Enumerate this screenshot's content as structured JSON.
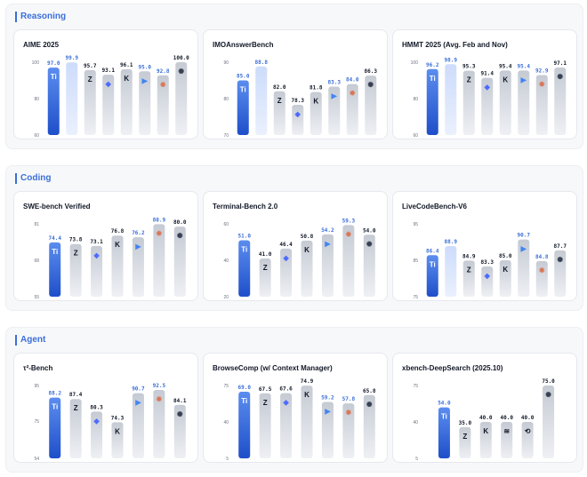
{
  "sections": [
    {
      "title": "Reasoning",
      "charts": [
        {
          "title": "AIME 2025",
          "ymin": 60,
          "ymax": 100,
          "ticks": [
            60,
            80,
            100
          ],
          "bars": [
            {
              "model": "ours",
              "value": 97.0,
              "label": "97.0",
              "highlight": true
            },
            {
              "model": "ours-heavy",
              "value": 99.9,
              "label": "99.9",
              "highlight": "light"
            },
            {
              "model": "z",
              "value": 95.7,
              "label": "95.7"
            },
            {
              "model": "deepseek",
              "value": 93.1,
              "label": "93.1"
            },
            {
              "model": "kimi",
              "value": 96.1,
              "label": "96.1"
            },
            {
              "model": "gemini",
              "value": 95.0,
              "label": "95.0"
            },
            {
              "model": "claude",
              "value": 92.8,
              "label": "92.8"
            },
            {
              "model": "openai",
              "value": 100.0,
              "label": "100.0"
            }
          ]
        },
        {
          "title": "IMOAnswerBench",
          "ymin": 70,
          "ymax": 90,
          "ticks": [
            70,
            80,
            90
          ],
          "bars": [
            {
              "model": "ours",
              "value": 85.0,
              "label": "85.0",
              "highlight": true
            },
            {
              "model": "ours-heavy",
              "value": 88.8,
              "label": "88.8",
              "highlight": "light"
            },
            {
              "model": "z",
              "value": 82.0,
              "label": "82.0"
            },
            {
              "model": "deepseek",
              "value": 78.3,
              "label": "78.3"
            },
            {
              "model": "kimi",
              "value": 81.8,
              "label": "81.8"
            },
            {
              "model": "gemini",
              "value": 83.3,
              "label": "83.3"
            },
            {
              "model": "claude",
              "value": 84.0,
              "label": "84.0"
            },
            {
              "model": "openai",
              "value": 86.3,
              "label": "86.3"
            }
          ]
        },
        {
          "title": "HMMT 2025 (Avg. Feb and Nov)",
          "ymin": 60,
          "ymax": 100,
          "ticks": [
            60,
            80,
            100
          ],
          "bars": [
            {
              "model": "ours",
              "value": 96.2,
              "label": "96.2",
              "highlight": true
            },
            {
              "model": "ours-heavy",
              "value": 98.9,
              "label": "98.9",
              "highlight": "light"
            },
            {
              "model": "z",
              "value": 95.3,
              "label": "95.3"
            },
            {
              "model": "deepseek",
              "value": 91.4,
              "label": "91.4"
            },
            {
              "model": "kimi",
              "value": 95.4,
              "label": "95.4"
            },
            {
              "model": "gemini",
              "value": 95.4,
              "label": "95.4"
            },
            {
              "model": "claude",
              "value": 92.9,
              "label": "92.9"
            },
            {
              "model": "openai",
              "value": 97.1,
              "label": "97.1"
            }
          ]
        }
      ]
    },
    {
      "title": "Coding",
      "charts": [
        {
          "title": "SWE-bench Verified",
          "ymin": 55,
          "ymax": 81,
          "ticks": [
            55,
            68,
            81
          ],
          "bars": [
            {
              "model": "ours",
              "value": 74.4,
              "label": "74.4",
              "highlight": true
            },
            {
              "model": "z",
              "value": 73.8,
              "label": "73.8"
            },
            {
              "model": "deepseek",
              "value": 73.1,
              "label": "73.1"
            },
            {
              "model": "kimi",
              "value": 76.8,
              "label": "76.8"
            },
            {
              "model": "gemini",
              "value": 76.2,
              "label": "76.2"
            },
            {
              "model": "claude",
              "value": 80.9,
              "label": "80.9"
            },
            {
              "model": "openai",
              "value": 80.0,
              "label": "80.0"
            }
          ]
        },
        {
          "title": "Terminal-Bench 2.0",
          "ymin": 20,
          "ymax": 60,
          "ticks": [
            20,
            40,
            60
          ],
          "bars": [
            {
              "model": "ours",
              "value": 51.0,
              "label": "51.0",
              "highlight": true
            },
            {
              "model": "z",
              "value": 41.0,
              "label": "41.0"
            },
            {
              "model": "deepseek",
              "value": 46.4,
              "label": "46.4"
            },
            {
              "model": "kimi",
              "value": 50.8,
              "label": "50.8"
            },
            {
              "model": "gemini",
              "value": 54.2,
              "label": "54.2"
            },
            {
              "model": "claude",
              "value": 59.3,
              "label": "59.3"
            },
            {
              "model": "openai",
              "value": 54.0,
              "label": "54.0"
            }
          ]
        },
        {
          "title": "LiveCodeBench-V6",
          "ymin": 75,
          "ymax": 95,
          "ticks": [
            75,
            85,
            95
          ],
          "bars": [
            {
              "model": "ours",
              "value": 86.4,
              "label": "86.4",
              "highlight": true
            },
            {
              "model": "ours-heavy",
              "value": 88.9,
              "label": "88.9",
              "highlight": "light"
            },
            {
              "model": "z",
              "value": 84.9,
              "label": "84.9"
            },
            {
              "model": "deepseek",
              "value": 83.3,
              "label": "83.3"
            },
            {
              "model": "kimi",
              "value": 85.0,
              "label": "85.0"
            },
            {
              "model": "gemini",
              "value": 90.7,
              "label": "90.7"
            },
            {
              "model": "claude",
              "value": 84.8,
              "label": "84.8"
            },
            {
              "model": "openai",
              "value": 87.7,
              "label": "87.7"
            }
          ]
        }
      ]
    },
    {
      "title": "Agent",
      "charts": [
        {
          "title": "τ²-Bench",
          "ymin": 54,
          "ymax": 95,
          "ticks": [
            54,
            75,
            95
          ],
          "bars": [
            {
              "model": "ours",
              "value": 88.2,
              "label": "88.2",
              "highlight": true
            },
            {
              "model": "z",
              "value": 87.4,
              "label": "87.4"
            },
            {
              "model": "deepseek",
              "value": 80.3,
              "label": "80.3"
            },
            {
              "model": "kimi",
              "value": 74.3,
              "label": "74.3"
            },
            {
              "model": "gemini",
              "value": 90.7,
              "label": "90.7"
            },
            {
              "model": "claude",
              "value": 92.5,
              "label": "92.5"
            },
            {
              "model": "openai",
              "value": 84.1,
              "label": "84.1"
            }
          ]
        },
        {
          "title": "BrowseComp (w/ Context Manager)",
          "ymin": 5,
          "ymax": 75,
          "ticks": [
            5,
            40,
            75
          ],
          "bars": [
            {
              "model": "ours",
              "value": 69.0,
              "label": "69.0",
              "highlight": true
            },
            {
              "model": "z",
              "value": 67.5,
              "label": "67.5"
            },
            {
              "model": "deepseek",
              "value": 67.6,
              "label": "67.6"
            },
            {
              "model": "kimi",
              "value": 74.9,
              "label": "74.9"
            },
            {
              "model": "gemini",
              "value": 59.2,
              "label": "59.2"
            },
            {
              "model": "claude",
              "value": 57.8,
              "label": "57.8"
            },
            {
              "model": "openai",
              "value": 65.8,
              "label": "65.8"
            }
          ]
        },
        {
          "title": "xbench-DeepSearch (2025.10)",
          "ymin": 5,
          "ymax": 75,
          "ticks": [
            5,
            40,
            75
          ],
          "bars": [
            {
              "model": "ours",
              "value": 54.0,
              "label": "54.0",
              "highlight": true
            },
            {
              "model": "z",
              "value": 35.0,
              "label": "35.0"
            },
            {
              "model": "kimi",
              "value": 40.0,
              "label": "40.0"
            },
            {
              "model": "minimax",
              "value": 40.0,
              "label": "40.0"
            },
            {
              "model": "qwen",
              "value": 40.0,
              "label": "40.0"
            },
            {
              "model": "openai",
              "value": 75.0,
              "label": "75.0"
            }
          ]
        }
      ]
    }
  ],
  "icons": {
    "ours": {
      "glyph": "Ti",
      "color": "#ffffff"
    },
    "ours-heavy": {
      "glyph": "",
      "color": "#ffffff"
    },
    "z": {
      "glyph": "Z",
      "color": "#111827"
    },
    "deepseek": {
      "glyph": "◆",
      "color": "#4d6bfe"
    },
    "kimi": {
      "glyph": "K",
      "color": "#111827"
    },
    "gemini": {
      "glyph": "▶",
      "color": "#4285f4"
    },
    "claude": {
      "glyph": "✹",
      "color": "#d97757"
    },
    "openai": {
      "glyph": "✺",
      "color": "#374151"
    },
    "minimax": {
      "glyph": "≋",
      "color": "#111827"
    },
    "qwen": {
      "glyph": "⟲",
      "color": "#111827"
    }
  },
  "colors": {
    "highlight_top": "#5b8def",
    "highlight_bottom": "#1f4fc9",
    "light_top": "#cddcfb",
    "light_bottom": "#eaf0fd",
    "bar_top": "#c5cad3",
    "bar_bottom": "#eef0f4",
    "label_blue": "#3b6fd8",
    "label_dark": "#111827",
    "label_claude": "#5b8def"
  },
  "chart_data": [
    {
      "type": "bar",
      "title": "AIME 2025",
      "ylim": [
        60,
        100
      ],
      "values": [
        97.0,
        99.9,
        95.7,
        93.1,
        96.1,
        95.0,
        92.8,
        100.0
      ]
    },
    {
      "type": "bar",
      "title": "IMOAnswerBench",
      "ylim": [
        70,
        90
      ],
      "values": [
        85.0,
        88.8,
        82.0,
        78.3,
        81.8,
        83.3,
        84.0,
        86.3
      ]
    },
    {
      "type": "bar",
      "title": "HMMT 2025 (Avg. Feb and Nov)",
      "ylim": [
        60,
        100
      ],
      "values": [
        96.2,
        98.9,
        95.3,
        91.4,
        95.4,
        95.4,
        92.9,
        97.1
      ]
    },
    {
      "type": "bar",
      "title": "SWE-bench Verified",
      "ylim": [
        55,
        81
      ],
      "values": [
        74.4,
        73.8,
        73.1,
        76.8,
        76.2,
        80.9,
        80.0
      ]
    },
    {
      "type": "bar",
      "title": "Terminal-Bench 2.0",
      "ylim": [
        20,
        60
      ],
      "values": [
        51.0,
        41.0,
        46.4,
        50.8,
        54.2,
        59.3,
        54.0
      ]
    },
    {
      "type": "bar",
      "title": "LiveCodeBench-V6",
      "ylim": [
        75,
        95
      ],
      "values": [
        86.4,
        88.9,
        84.9,
        83.3,
        85.0,
        90.7,
        84.8,
        87.7
      ]
    },
    {
      "type": "bar",
      "title": "τ²-Bench",
      "ylim": [
        54,
        95
      ],
      "values": [
        88.2,
        87.4,
        80.3,
        74.3,
        90.7,
        92.5,
        84.1
      ]
    },
    {
      "type": "bar",
      "title": "BrowseComp (w/ Context Manager)",
      "ylim": [
        5,
        75
      ],
      "values": [
        69.0,
        67.5,
        67.6,
        74.9,
        59.2,
        57.8,
        65.8
      ]
    },
    {
      "type": "bar",
      "title": "xbench-DeepSearch (2025.10)",
      "ylim": [
        5,
        75
      ],
      "values": [
        54.0,
        35.0,
        40.0,
        40.0,
        40.0,
        75.0
      ]
    }
  ]
}
